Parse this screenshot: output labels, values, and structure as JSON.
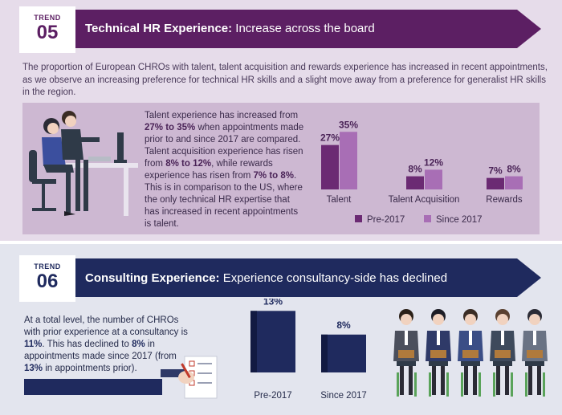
{
  "trend1": {
    "label": "TREND",
    "number": "05",
    "title_bold": "Technical HR Experience:",
    "title_rest": " Increase across the board",
    "intro": "The proportion of European CHROs with talent, talent acquisition and rewards experience has increased in recent appointments, as we observe an increasing preference for technical HR skills and a slight move away from a preference for generalist HR skills in the region.",
    "body": [
      {
        "t": "Talent experience has increased from ",
        "b": false
      },
      {
        "t": "27% to 35%",
        "b": true
      },
      {
        "t": " when appointments made prior to and since 2017 are compared. Talent acquisition experience has risen from ",
        "b": false
      },
      {
        "t": "8% to 12%",
        "b": true
      },
      {
        "t": ", while rewards experience has risen from ",
        "b": false
      },
      {
        "t": "7% to 8%",
        "b": true
      },
      {
        "t": ". This is in comparison to the US, where the only technical HR expertise that has increased in recent appointments is talent.",
        "b": false
      }
    ]
  },
  "trend2": {
    "label": "TREND",
    "number": "06",
    "title_bold": "Consulting Experience:",
    "title_rest": " Experience consultancy-side has declined",
    "body": [
      {
        "t": "At a total level, the number of CHROs with prior experience at a consultancy is ",
        "b": false
      },
      {
        "t": "11%",
        "b": true
      },
      {
        "t": ". This has declined to ",
        "b": false
      },
      {
        "t": "8%",
        "b": true
      },
      {
        "t": " in appointments made since 2017 (from ",
        "b": false
      },
      {
        "t": "13%",
        "b": true
      },
      {
        "t": " in appointments prior).",
        "b": false
      }
    ]
  },
  "colors": {
    "purple_dark": "#6b2a73",
    "purple_light": "#a86eb5",
    "navy": "#1f2a5e",
    "banner1": "#5c1f63",
    "banner2": "#1f2a5e"
  },
  "chart_data": [
    {
      "type": "bar",
      "categories": [
        "Talent",
        "Talent Acquisition",
        "Rewards"
      ],
      "series": [
        {
          "name": "Pre-2017",
          "values": [
            27,
            8,
            7
          ],
          "labels": [
            "27%",
            "8%",
            "7%"
          ]
        },
        {
          "name": "Since 2017",
          "values": [
            35,
            12,
            8
          ],
          "labels": [
            "35%",
            "12%",
            "8%"
          ]
        }
      ],
      "legend_position": "bottom",
      "grid": false
    },
    {
      "type": "bar",
      "categories": [
        "Pre-2017",
        "Since 2017"
      ],
      "values": [
        13,
        8
      ],
      "labels": [
        "13%",
        "8%"
      ],
      "grid": false
    }
  ]
}
